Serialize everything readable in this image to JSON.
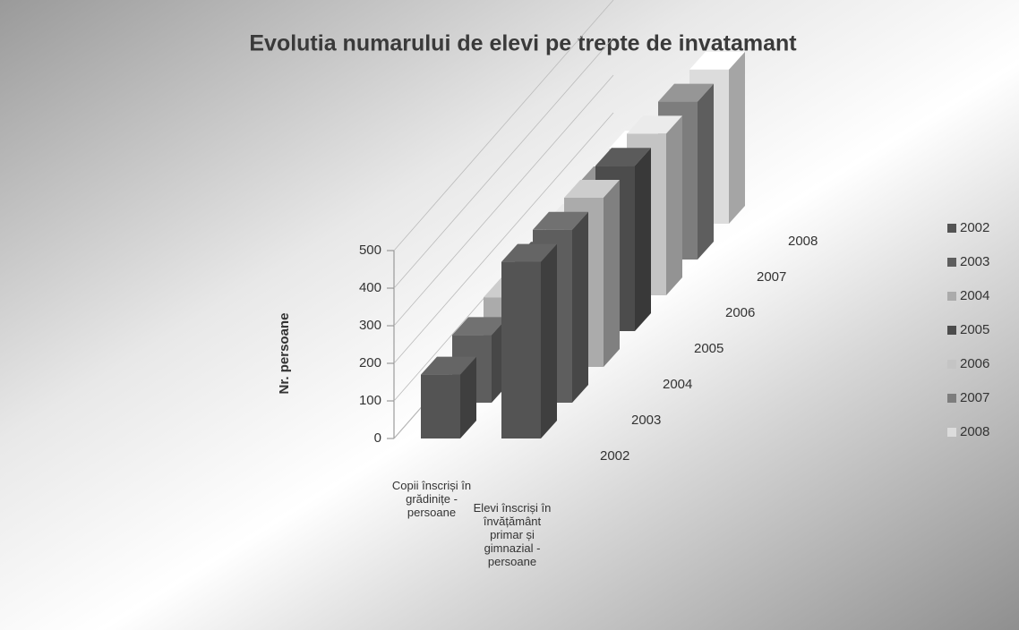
{
  "chart_data": {
    "type": "bar3d",
    "title": "Evolutia numarului de elevi pe trepte de invatamant",
    "y_label": "Nr. persoane",
    "categories": [
      "Copii înscriși în grădinițe - persoane",
      "Elevi înscriși în învățământ primar și gimnazial - persoane"
    ],
    "series": [
      {
        "name": "2002",
        "color": "#545454",
        "values": [
          170,
          470
        ]
      },
      {
        "name": "2003",
        "color": "#5e5e5e",
        "values": [
          180,
          460
        ]
      },
      {
        "name": "2004",
        "color": "#ababab",
        "values": [
          185,
          450
        ]
      },
      {
        "name": "2005",
        "color": "#4c4c4c",
        "values": [
          190,
          440
        ]
      },
      {
        "name": "2006",
        "color": "#c4c4c4",
        "values": [
          195,
          430
        ]
      },
      {
        "name": "2007",
        "color": "#7d7d7d",
        "values": [
          200,
          420
        ]
      },
      {
        "name": "2008",
        "color": "#dcdcdc",
        "values": [
          200,
          410
        ]
      }
    ],
    "ylim": [
      0,
      500
    ],
    "yticks": [
      0,
      100,
      200,
      300,
      400,
      500
    ],
    "grid": true,
    "legend": "right"
  }
}
